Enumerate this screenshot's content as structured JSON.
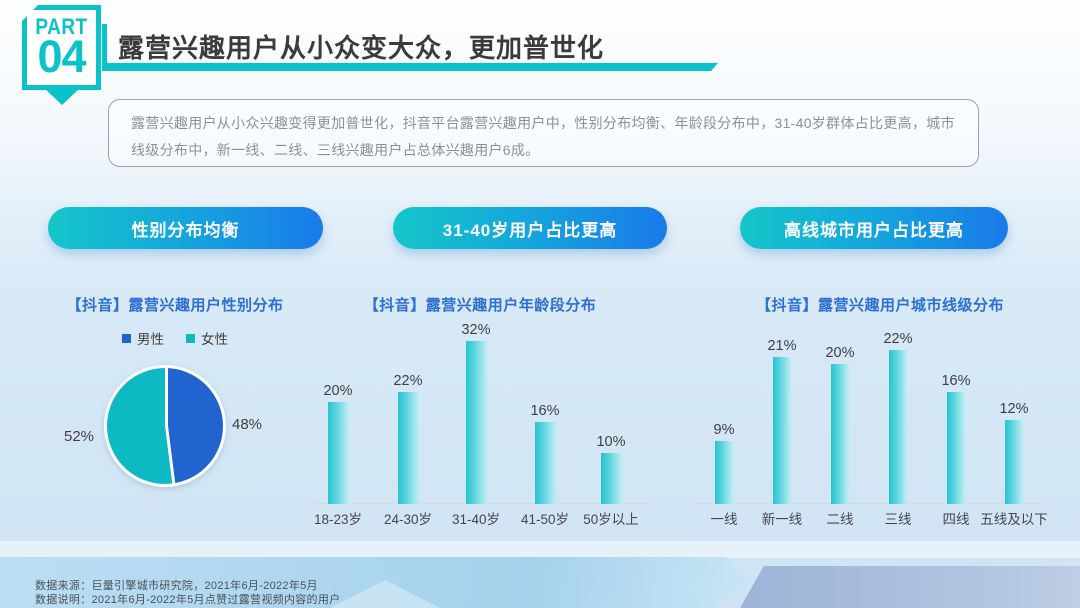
{
  "part_badge": {
    "part_label": "PART",
    "number": "04"
  },
  "header": {
    "title": "露营兴趣用户从小众变大众，更加普世化"
  },
  "summary": {
    "text": "露营兴趣用户从小众兴趣变得更加普世化，抖音平台露营兴趣用户中，性别分布均衡、年龄段分布中，31-40岁群体占比更高，城市线级分布中，新一线、二线、三线兴趣用户占总体兴趣用户6成。"
  },
  "highlight_pills": [
    {
      "label": "性别分布均衡"
    },
    {
      "label": "31-40岁用户占比更高"
    },
    {
      "label": "高线城市用户占比更高"
    }
  ],
  "colors": {
    "accent_teal": "#0bc2cb",
    "pill_gradient_start": "#15c6c9",
    "pill_gradient_end": "#1a7aeb",
    "chart_title_blue": "#2e6fd4",
    "pie_male_blue": "#2264cf",
    "pie_female_teal": "#0dbac4",
    "bar_teal": "#27c4d1"
  },
  "chart_data": [
    {
      "type": "pie",
      "title": "【抖音】露营兴趣用户性别分布",
      "labels": [
        "男性",
        "女性"
      ],
      "values": [
        48,
        52
      ],
      "value_labels": [
        "48%",
        "52%"
      ],
      "colors": [
        "#2264cf",
        "#0dbac4"
      ],
      "legend_position": "top",
      "start_angle": "top, male slice clockwise"
    },
    {
      "type": "bar",
      "title": "【抖音】露营兴趣用户年龄段分布",
      "categories": [
        "18-23岁",
        "24-30岁",
        "31-40岁",
        "41-50岁",
        "50岁以上"
      ],
      "values": [
        20,
        22,
        32,
        16,
        10
      ],
      "value_labels": [
        "20%",
        "22%",
        "32%",
        "16%",
        "10%"
      ],
      "ylim": [
        0,
        35
      ],
      "grid": false,
      "legend_position": "none"
    },
    {
      "type": "bar",
      "title": "【抖音】露营兴趣用户城市线级分布",
      "categories": [
        "一线",
        "新一线",
        "二线",
        "三线",
        "四线",
        "五线及以下"
      ],
      "values": [
        9,
        21,
        20,
        22,
        16,
        12
      ],
      "value_labels": [
        "9%",
        "21%",
        "20%",
        "22%",
        "16%",
        "12%"
      ],
      "ylim": [
        0,
        25
      ],
      "grid": false,
      "legend_position": "none"
    }
  ],
  "footer": {
    "source": "数据来源：巨量引擎城市研究院，2021年6月-2022年5月",
    "note": "数据说明：2021年6月-2022年5月点赞过露营视频内容的用户"
  }
}
